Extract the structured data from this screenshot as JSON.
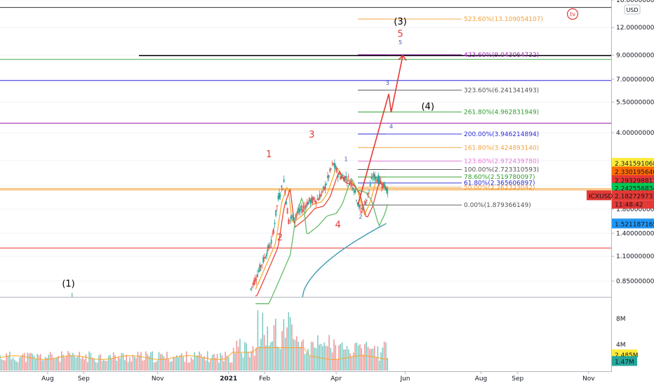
{
  "chart_data": {
    "type": "candlestick",
    "symbol": "ICXUSD",
    "currency": "USD",
    "scale": "log",
    "ylim": [
      0.72,
      16.0
    ],
    "price_ticks": [
      "16.000000000",
      "12.000000000",
      "9.000000000",
      "7.000000000",
      "5.500000000",
      "4.000000000",
      "3.000000000",
      "2.300000000",
      "1.800000000",
      "1.400000000",
      "1.100000000",
      "0.850000000"
    ],
    "time_ticks": [
      "Aug",
      "Sep",
      "Nov",
      "2021",
      "Feb",
      "Apr",
      "Jun",
      "Aug",
      "Sep",
      "Nov"
    ],
    "horizontal_lines": [
      {
        "price": 14.8,
        "color": "#333333"
      },
      {
        "price": 8.95,
        "color": "#000000"
      },
      {
        "price": 8.6,
        "color": "#4caf50"
      },
      {
        "price": 6.9,
        "color": "#2b2bd6"
      },
      {
        "price": 4.42,
        "color": "#9c27b0"
      },
      {
        "price": 2.23,
        "color": "#f2a23a"
      },
      {
        "price": 2.2,
        "color": "#f2a23a"
      },
      {
        "price": 1.2,
        "color": "#e53935"
      }
    ],
    "fib_levels": [
      {
        "label": "523.60%(13.109054107)",
        "price": 13.109,
        "color": "#f2a23a"
      },
      {
        "label": "423.60%(9.043064732)",
        "price": 9.043,
        "color": "#9c27b0"
      },
      {
        "label": "323.60%(6.241341493)",
        "price": 6.241,
        "color": "#555555"
      },
      {
        "label": "261.80%(4.962831949)",
        "price": 4.963,
        "color": "#2e9e2e"
      },
      {
        "label": "200.00%(3.946214894)",
        "price": 3.946,
        "color": "#2b2bd6"
      },
      {
        "label": "161.80%(3.424893140)",
        "price": 3.425,
        "color": "#f2a23a"
      },
      {
        "label": "123.60%(2.972439780)",
        "price": 2.972,
        "color": "#e878d8"
      },
      {
        "label": "100.00%(2.723310593)",
        "price": 2.723,
        "color": "#555555"
      },
      {
        "label": "78.60%(2.519780097)",
        "price": 2.52,
        "color": "#2e9e2e"
      },
      {
        "label": "61.80%(2.365606897)",
        "price": 2.366,
        "color": "#2b2bd6"
      },
      {
        "label": "50.00%(2.262323042)",
        "price": 2.262,
        "color": "#f2a23a"
      },
      {
        "label": "0.00%(1.879366149)",
        "price": 1.879,
        "color": "#555555"
      }
    ],
    "price_badges": [
      {
        "label": "2.341591068",
        "price": 2.92,
        "bg": "#ffeb3b",
        "fg": "#000000"
      },
      {
        "label": "2.330195640",
        "price": 2.67,
        "bg": "#ff6d00",
        "fg": "#ffffff"
      },
      {
        "label": "2.293298813",
        "price": 2.44,
        "bg": "#e53935",
        "fg": "#ffffff"
      },
      {
        "label": "2.242556834",
        "price": 2.25,
        "bg": "#00c853",
        "fg": "#000000"
      },
      {
        "label": "2.182729733",
        "price": 2.08,
        "bg": "#e53935",
        "fg": "#ffffff"
      },
      {
        "label": "1.521187165",
        "price": 1.55,
        "bg": "#2196f3",
        "fg": "#ffffff"
      }
    ],
    "current": {
      "symbol": "ICXUSD",
      "price": "2.182729733",
      "countdown": "11:48:42"
    },
    "wave_labels": [
      {
        "text": "(1)",
        "t": 0.112,
        "price": 0.8,
        "color": "#000000"
      },
      {
        "text": "1",
        "t": 0.44,
        "price": 3.1,
        "color": "#e53935"
      },
      {
        "text": "2",
        "t": 0.458,
        "price": 1.3,
        "color": "#e53935"
      },
      {
        "text": "3",
        "t": 0.51,
        "price": 3.8,
        "color": "#e53935"
      },
      {
        "text": "4",
        "t": 0.553,
        "price": 1.48,
        "color": "#e53935"
      },
      {
        "text": "1",
        "t": 0.566,
        "price": 2.97,
        "color": "#3f51b5"
      },
      {
        "text": "2",
        "t": 0.59,
        "price": 1.63,
        "color": "#3f51b5"
      },
      {
        "text": "3",
        "t": 0.634,
        "price": 6.6,
        "color": "#3f51b5"
      },
      {
        "text": "4",
        "t": 0.64,
        "price": 4.18,
        "color": "#3f51b5"
      },
      {
        "text": "5",
        "t": 0.655,
        "price": 10.1,
        "color": "#3f51b5"
      },
      {
        "text": "(3)",
        "t": 0.655,
        "price": 12.4,
        "color": "#000000"
      },
      {
        "text": "5",
        "t": 0.655,
        "price": 10.9,
        "color": "#e53935"
      },
      {
        "text": "(4)",
        "t": 0.7,
        "price": 5.1,
        "color": "#000000"
      }
    ],
    "projection": [
      {
        "t": 0.586,
        "price": 1.9
      },
      {
        "t": 0.636,
        "price": 6.0
      },
      {
        "t": 0.64,
        "price": 4.95
      },
      {
        "t": 0.659,
        "price": 8.95
      }
    ],
    "volume_axis": [
      "8M",
      "4M"
    ],
    "volume_badges": [
      {
        "label": "2.485M",
        "bg": "#ffeb3b",
        "fg": "#000000"
      },
      {
        "label": "1.47M",
        "bg": "#26a69a",
        "fg": "#ffffff"
      }
    ]
  },
  "logo": "tv"
}
